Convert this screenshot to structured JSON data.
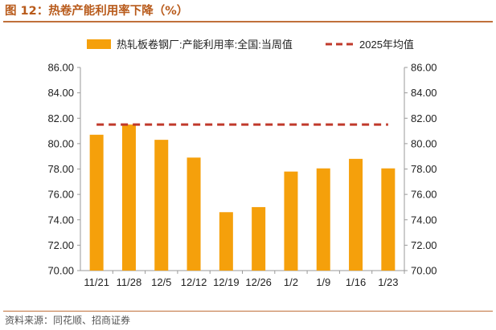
{
  "figure": {
    "title": "图 12：热卷产能利用率下降（%）",
    "source": "资料来源：同花顺、招商证券"
  },
  "colors": {
    "title": "#b85a1a",
    "rule": "#c0703a",
    "bar": "#f5a00b",
    "reference_line": "#c0392b",
    "axis_text": "#222222",
    "axis_line": "#999999"
  },
  "chart_data": {
    "type": "bar",
    "categories": [
      "11/21",
      "11/28",
      "12/5",
      "12/12",
      "12/19",
      "12/26",
      "1/2",
      "1/9",
      "1/16",
      "1/23"
    ],
    "series": [
      {
        "name": "热轧板卷钢厂:产能利用率:全国:当周值",
        "type": "bar",
        "color": "#f5a00b",
        "values": [
          80.7,
          81.5,
          80.3,
          78.9,
          74.6,
          75.0,
          77.8,
          78.05,
          78.8,
          78.05
        ]
      },
      {
        "name": "2025年均值",
        "type": "line",
        "style": "dashed",
        "color": "#c0392b",
        "values": [
          81.5,
          81.5,
          81.5,
          81.5,
          81.5,
          81.5,
          81.5,
          81.5,
          81.5,
          81.5
        ]
      }
    ],
    "ylim": [
      70,
      86
    ],
    "y_ticks": [
      "70.00",
      "72.00",
      "74.00",
      "76.00",
      "78.00",
      "80.00",
      "82.00",
      "84.00",
      "86.00"
    ],
    "y2_ticks": [
      "70.00",
      "72.00",
      "74.00",
      "76.00",
      "78.00",
      "80.00",
      "82.00",
      "84.00",
      "86.00"
    ],
    "legend_position": "top",
    "grid": false
  }
}
